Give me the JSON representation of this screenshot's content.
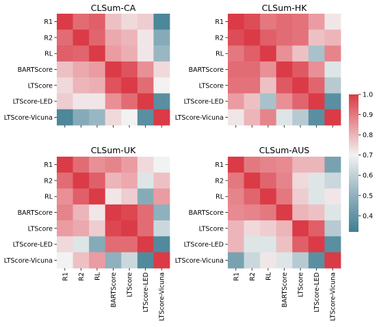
{
  "chart_data": [
    {
      "type": "heatmap",
      "title": "CLSum-CA",
      "rows": [
        "R1",
        "R2",
        "RL",
        "BARTScore",
        "LTScore",
        "LTScore-LED",
        "LTScore-Vicuna"
      ],
      "cols": [
        "R1",
        "R2",
        "RL",
        "BARTScore",
        "LTScore",
        "LTScore-LED",
        "LTScore-Vicuna"
      ],
      "show_x_tick_labels": false,
      "values": [
        [
          1.0,
          0.92,
          0.94,
          0.78,
          0.74,
          0.76,
          0.35
        ],
        [
          0.92,
          1.0,
          0.93,
          0.82,
          0.8,
          0.72,
          0.48
        ],
        [
          0.94,
          0.93,
          1.0,
          0.84,
          0.81,
          0.72,
          0.52
        ],
        [
          0.78,
          0.82,
          0.84,
          1.0,
          0.96,
          0.86,
          0.74
        ],
        [
          0.74,
          0.8,
          0.81,
          0.96,
          1.0,
          0.92,
          0.7
        ],
        [
          0.76,
          0.72,
          0.72,
          0.86,
          0.92,
          1.0,
          0.38
        ],
        [
          0.35,
          0.48,
          0.52,
          0.74,
          0.7,
          0.38,
          1.0
        ]
      ]
    },
    {
      "type": "heatmap",
      "title": "CLSum-HK",
      "rows": [
        "R1",
        "R2",
        "RL",
        "BARTScore",
        "LTScore",
        "LTScore-LED",
        "LTScore-Vicuna"
      ],
      "cols": [
        "R1",
        "R2",
        "RL",
        "BARTScore",
        "LTScore",
        "LTScore-LED",
        "LTScore-Vicuna"
      ],
      "show_x_tick_labels": false,
      "values": [
        [
          1.0,
          0.97,
          0.9,
          0.92,
          0.91,
          0.84,
          0.72
        ],
        [
          0.97,
          1.0,
          0.94,
          0.92,
          0.91,
          0.78,
          0.8
        ],
        [
          0.9,
          0.94,
          1.0,
          0.86,
          0.78,
          0.55,
          0.88
        ],
        [
          0.92,
          0.92,
          0.86,
          1.0,
          0.95,
          0.86,
          0.66
        ],
        [
          0.91,
          0.91,
          0.78,
          0.95,
          1.0,
          0.93,
          0.58
        ],
        [
          0.84,
          0.78,
          0.55,
          0.86,
          0.93,
          1.0,
          0.38
        ],
        [
          0.72,
          0.8,
          0.88,
          0.66,
          0.58,
          0.38,
          1.0
        ]
      ]
    },
    {
      "type": "heatmap",
      "title": "CLSum-UK",
      "rows": [
        "R1",
        "R2",
        "RL",
        "BARTScore",
        "LTScore",
        "LTScore-LED",
        "LTScore-Vicuna"
      ],
      "cols": [
        "R1",
        "R2",
        "RL",
        "BARTScore",
        "LTScore",
        "LTScore-LED",
        "LTScore-Vicuna"
      ],
      "show_x_tick_labels": true,
      "values": [
        [
          1.0,
          0.92,
          0.86,
          0.88,
          0.84,
          0.74,
          0.7
        ],
        [
          0.92,
          1.0,
          0.94,
          0.8,
          0.82,
          0.66,
          0.78
        ],
        [
          0.86,
          0.94,
          1.0,
          0.72,
          0.76,
          0.48,
          0.84
        ],
        [
          0.88,
          0.8,
          0.72,
          1.0,
          0.98,
          0.92,
          0.5
        ],
        [
          0.84,
          0.82,
          0.76,
          0.98,
          1.0,
          0.92,
          0.62
        ],
        [
          0.74,
          0.66,
          0.48,
          0.92,
          0.92,
          1.0,
          0.36
        ],
        [
          0.7,
          0.78,
          0.84,
          0.5,
          0.62,
          0.36,
          1.0
        ]
      ]
    },
    {
      "type": "heatmap",
      "title": "CLSum-AUS",
      "rows": [
        "R1",
        "R2",
        "RL",
        "BARTScore",
        "LTScore",
        "LTScore-LED",
        "LTScore-Vicuna"
      ],
      "cols": [
        "R1",
        "R2",
        "RL",
        "BARTScore",
        "LTScore",
        "LTScore-LED",
        "LTScore-Vicuna"
      ],
      "show_x_tick_labels": true,
      "values": [
        [
          1.0,
          0.9,
          0.88,
          0.87,
          0.8,
          0.8,
          0.45
        ],
        [
          0.9,
          1.0,
          0.93,
          0.88,
          0.74,
          0.66,
          0.62
        ],
        [
          0.88,
          0.93,
          1.0,
          0.9,
          0.76,
          0.66,
          0.72
        ],
        [
          0.87,
          0.88,
          0.9,
          1.0,
          0.8,
          0.78,
          0.66
        ],
        [
          0.8,
          0.74,
          0.76,
          0.8,
          1.0,
          0.94,
          0.58
        ],
        [
          0.8,
          0.66,
          0.66,
          0.78,
          0.94,
          1.0,
          0.38
        ],
        [
          0.45,
          0.62,
          0.72,
          0.66,
          0.58,
          0.38,
          1.0
        ]
      ]
    }
  ],
  "colorbar": {
    "min": 0.32,
    "max": 1.0,
    "ticks": [
      "1.0",
      "0.9",
      "0.8",
      "0.7",
      "0.6",
      "0.5",
      "0.4"
    ],
    "tick_values": [
      1.0,
      0.9,
      0.8,
      0.7,
      0.6,
      0.5,
      0.4
    ],
    "stops": [
      {
        "v": 0.32,
        "color": "#3f7f93"
      },
      {
        "v": 0.5,
        "color": "#8fb0bd"
      },
      {
        "v": 0.7,
        "color": "#f2f2f2"
      },
      {
        "v": 0.85,
        "color": "#e9969c"
      },
      {
        "v": 1.0,
        "color": "#da3b46"
      }
    ]
  }
}
